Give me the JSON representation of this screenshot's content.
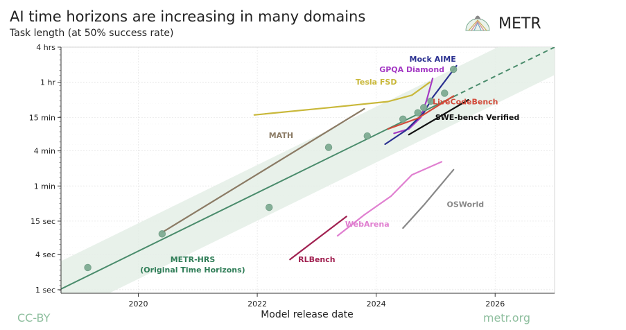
{
  "chart_data": {
    "type": "line",
    "title": "AI time horizons are increasing in many domains",
    "subtitle": "Task length (at 50% success rate)",
    "xlabel": "Model release date",
    "ylabel": "",
    "xlim": [
      2018.7,
      2027.0
    ],
    "ylim_minutes": [
      0.0145,
      240
    ],
    "y_scale": "log",
    "x_ticks": [
      {
        "value": 2020,
        "label": "2020"
      },
      {
        "value": 2022,
        "label": "2022"
      },
      {
        "value": 2024,
        "label": "2024"
      },
      {
        "value": 2026,
        "label": "2026"
      }
    ],
    "y_ticks": [
      {
        "value": 240,
        "label": "4 hrs"
      },
      {
        "value": 60,
        "label": "1 hr"
      },
      {
        "value": 15,
        "label": "15 min"
      },
      {
        "value": 4,
        "label": "4 min"
      },
      {
        "value": 1,
        "label": "1 min"
      },
      {
        "value": 0.25,
        "label": "15 sec"
      },
      {
        "value": 0.0667,
        "label": "4 sec"
      },
      {
        "value": 0.01667,
        "label": "1 sec"
      }
    ],
    "trend": {
      "name": "METR-HRS trend",
      "color": "#4a8c6c",
      "x0": 2018.6,
      "x1": 2027.0,
      "start_minutes": 0.0153,
      "end_minutes": 240,
      "dashed_from_x": 2025.3,
      "band_factor": 3.0
    },
    "scatter": {
      "name": "METR-HRS (Original Time Horizons)",
      "color": "#7fac93",
      "points": [
        {
          "x": 2019.15,
          "y": 0.04
        },
        {
          "x": 2020.4,
          "y": 0.151
        },
        {
          "x": 2022.2,
          "y": 0.43
        },
        {
          "x": 2023.2,
          "y": 4.6
        },
        {
          "x": 2023.85,
          "y": 7.2
        },
        {
          "x": 2024.45,
          "y": 14.0
        },
        {
          "x": 2024.7,
          "y": 18.0
        },
        {
          "x": 2024.8,
          "y": 22.0
        },
        {
          "x": 2024.92,
          "y": 28.5
        },
        {
          "x": 2025.15,
          "y": 39.0
        },
        {
          "x": 2025.3,
          "y": 100.0
        }
      ]
    },
    "series": [
      {
        "name": "Tesla FSD",
        "color": "#c9b83a",
        "label_pos": [
          2024.0,
          55
        ],
        "points": [
          [
            2021.95,
            16.5
          ],
          [
            2023.2,
            22
          ],
          [
            2024.2,
            28
          ],
          [
            2024.6,
            36
          ],
          [
            2024.9,
            60
          ]
        ]
      },
      {
        "name": "MATH",
        "color": "#8b7b65",
        "label_pos": [
          2022.4,
          6.7
        ],
        "points": [
          [
            2020.4,
            0.16
          ],
          [
            2023.8,
            21.0
          ]
        ]
      },
      {
        "name": "GPQA Diamond",
        "color": "#a43ac4",
        "label_pos": [
          2024.6,
          90
        ],
        "points": [
          [
            2024.3,
            8.0
          ],
          [
            2024.55,
            9.5
          ],
          [
            2024.75,
            15
          ],
          [
            2024.85,
            30
          ],
          [
            2024.95,
            70
          ]
        ]
      },
      {
        "name": "Mock AIME",
        "color": "#2a3090",
        "label_pos": [
          2024.95,
          135
        ],
        "points": [
          [
            2024.15,
            5.2
          ],
          [
            2024.5,
            9
          ],
          [
            2024.8,
            18
          ],
          [
            2024.95,
            33
          ],
          [
            2025.35,
            115
          ]
        ]
      },
      {
        "name": "LiveCodeBench",
        "color": "#d24a3a",
        "label_pos": [
          2025.5,
          25
        ],
        "points": [
          [
            2024.2,
            9.5
          ],
          [
            2024.7,
            14.5
          ],
          [
            2025.3,
            35
          ]
        ]
      },
      {
        "name": "SWE-bench Verified",
        "color": "#111111",
        "label_pos": [
          2025.7,
          13.5
        ],
        "points": [
          [
            2024.55,
            7.6
          ],
          [
            2025.55,
            30
          ]
        ]
      },
      {
        "name": "WebArena",
        "color": "#e07fd0",
        "label_pos": [
          2023.85,
          0.2
        ],
        "points": [
          [
            2023.35,
            0.14
          ],
          [
            2023.8,
            0.32
          ],
          [
            2024.25,
            0.67
          ],
          [
            2024.6,
            1.55
          ],
          [
            2025.1,
            2.6
          ]
        ]
      },
      {
        "name": "OSWorld",
        "color": "#888888",
        "label_pos": [
          2025.5,
          0.44
        ],
        "points": [
          [
            2024.45,
            0.19
          ],
          [
            2024.8,
            0.47
          ],
          [
            2025.3,
            1.9
          ]
        ]
      },
      {
        "name": "RLBench",
        "color": "#a02050",
        "label_pos": [
          2023.0,
          0.05
        ],
        "points": [
          [
            2022.55,
            0.055
          ],
          [
            2023.5,
            0.3
          ]
        ]
      }
    ],
    "annotations": [
      "METR-HRS",
      "(Original Time Horizons)"
    ]
  },
  "brand": {
    "name": "METR"
  },
  "footer": {
    "license": "CC-BY",
    "site": "metr.org"
  }
}
